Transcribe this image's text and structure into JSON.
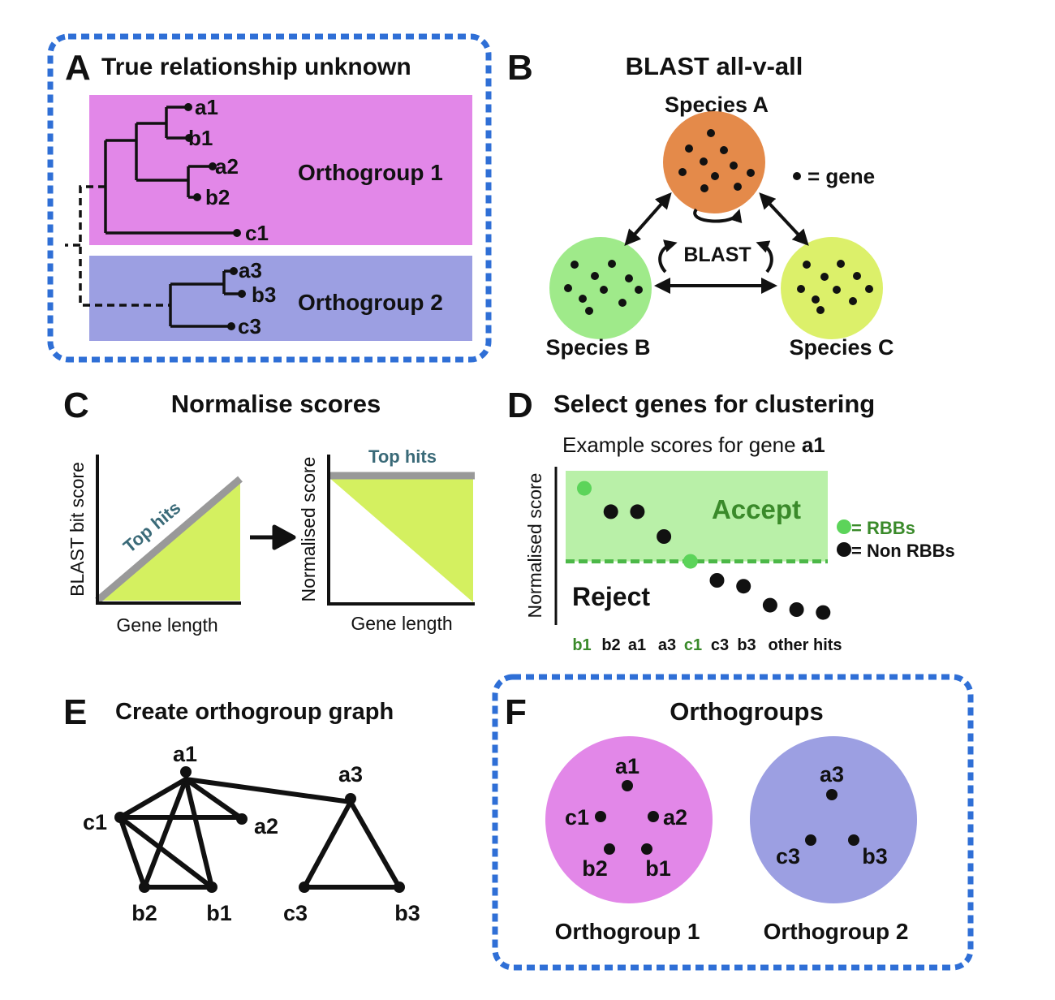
{
  "panelA": {
    "label": "A",
    "title": "True relationship unknown",
    "genes": [
      "a1",
      "b1",
      "a2",
      "b2",
      "c1",
      "a3",
      "b3",
      "c3"
    ],
    "groups": [
      "Orthogroup 1",
      "Orthogroup 2"
    ],
    "colors": {
      "group1": "#e287e8",
      "group2": "#9c9fe2",
      "border": "#2f6fd6"
    }
  },
  "panelB": {
    "label": "B",
    "title": "BLAST all-v-all",
    "species": [
      "Species A",
      "Species B",
      "Species C"
    ],
    "gene_legend": "= gene",
    "blast": "BLAST",
    "colors": {
      "A": "#e48a4a",
      "B": "#9fea8a",
      "C": "#dcf06a"
    }
  },
  "panelC": {
    "label": "C",
    "title": "Normalise scores",
    "left_ylabel": "BLAST bit score",
    "left_xlabel": "Gene length",
    "left_tophits": "Top hits",
    "right_ylabel": "Normalised score",
    "right_xlabel": "Gene length",
    "right_tophits": "Top hits",
    "colors": {
      "fill": "#d4f060",
      "line": "#999999",
      "tophits": "#3a6a78"
    }
  },
  "panelD": {
    "label": "D",
    "title": "Select genes for clustering",
    "subtitle_prefix": "Example scores for gene ",
    "subtitle_gene": "a1",
    "ylabel": "Normalised score",
    "accept": "Accept",
    "reject": "Reject",
    "legend_rbb": "= RBBs",
    "legend_nonrbb": "= Non RBBs",
    "xticks": [
      "b1",
      "b2",
      "a1",
      "a3",
      "c1",
      "c3",
      "b3",
      "other hits"
    ],
    "rbb_ticks": [
      0,
      4
    ],
    "threshold": 0.38,
    "points": [
      {
        "x": 0,
        "y": 0.88,
        "rbb": true
      },
      {
        "x": 1,
        "y": 0.72,
        "rbb": false
      },
      {
        "x": 2,
        "y": 0.72,
        "rbb": false
      },
      {
        "x": 3,
        "y": 0.55,
        "rbb": false
      },
      {
        "x": 4,
        "y": 0.38,
        "rbb": true
      },
      {
        "x": 5,
        "y": 0.25,
        "rbb": false
      },
      {
        "x": 6,
        "y": 0.21,
        "rbb": false
      },
      {
        "x": 7,
        "y": 0.08,
        "rbb": false
      },
      {
        "x": 8,
        "y": 0.05,
        "rbb": false
      },
      {
        "x": 9,
        "y": 0.03,
        "rbb": false
      }
    ],
    "colors": {
      "accept": "#b9f0a8",
      "threshold": "#4cb848",
      "rbb": "#5cd45a",
      "rbb_text": "#3a8a2a"
    }
  },
  "panelE": {
    "label": "E",
    "title": "Create orthogroup graph",
    "nodes": [
      "a1",
      "c1",
      "a2",
      "b2",
      "b1",
      "a3",
      "c3",
      "b3"
    ]
  },
  "panelF": {
    "label": "F",
    "title": "Orthogroups",
    "group1_genes": [
      "a1",
      "c1",
      "a2",
      "b2",
      "b1"
    ],
    "group2_genes": [
      "a3",
      "c3",
      "b3"
    ],
    "group1_name": "Orthogroup 1",
    "group2_name": "Orthogroup 2",
    "colors": {
      "group1": "#e287e8",
      "group2": "#9c9fe2",
      "border": "#2f6fd6"
    }
  }
}
